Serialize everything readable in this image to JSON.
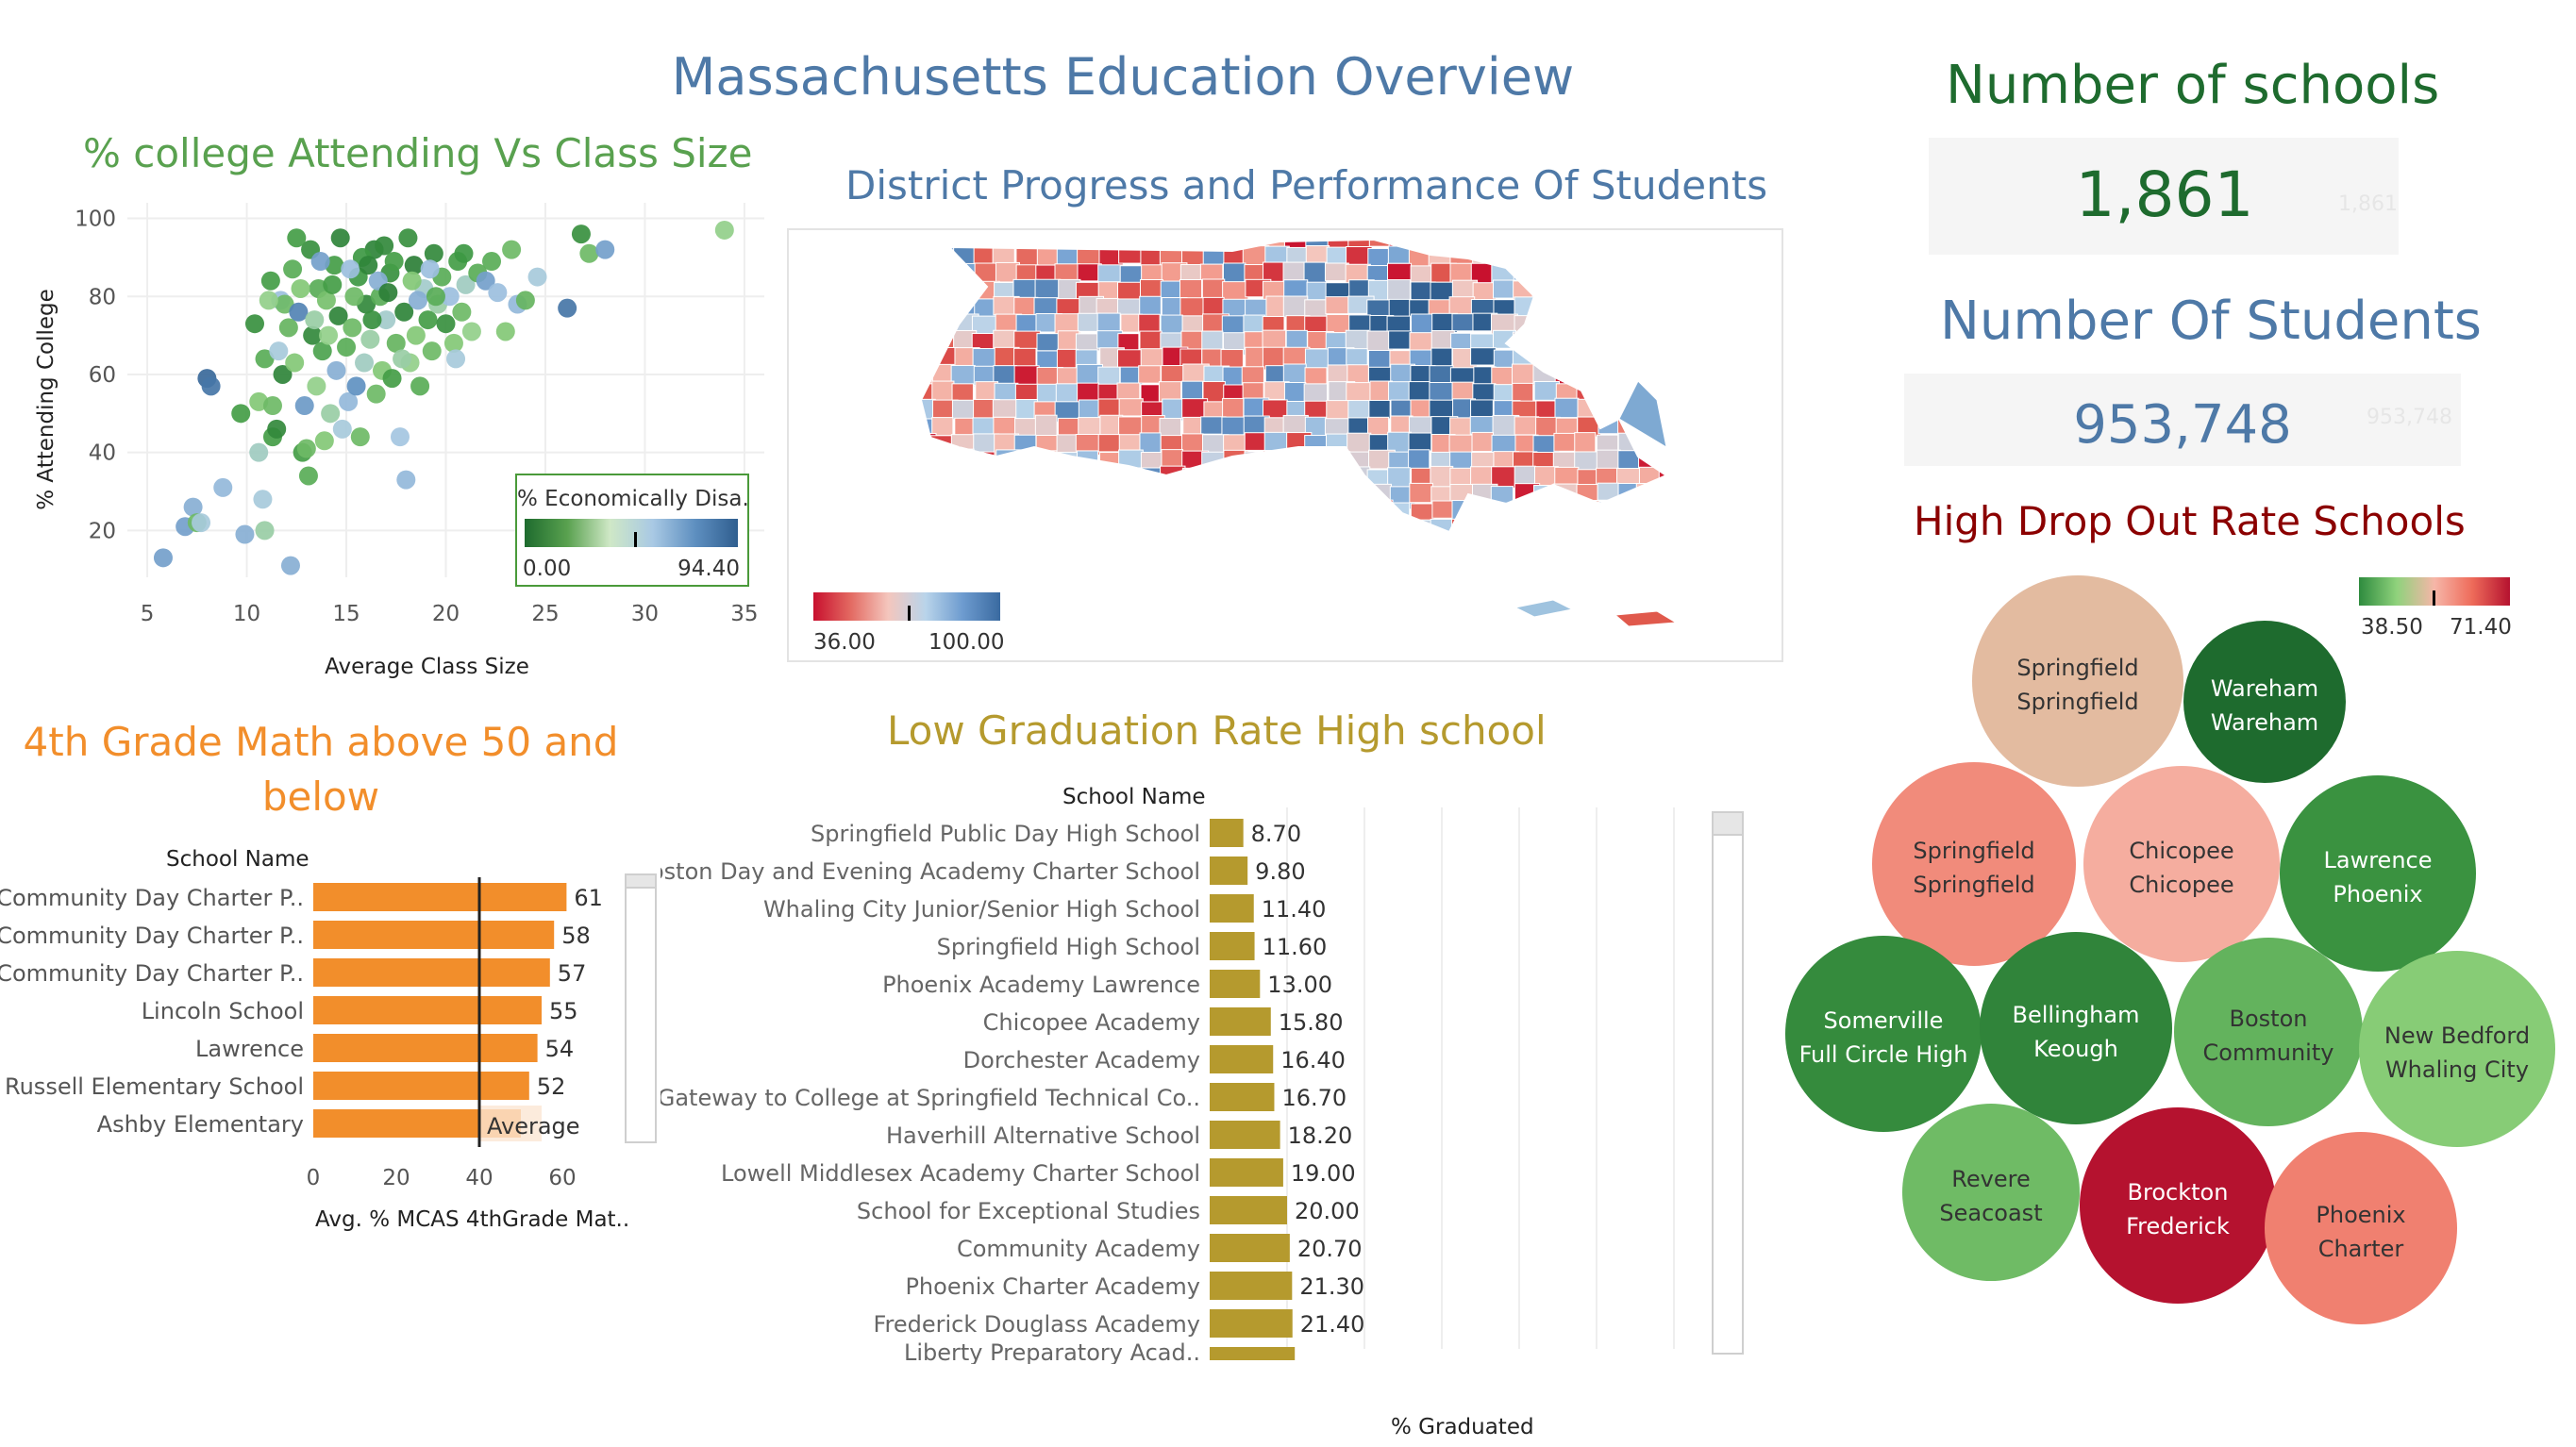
{
  "dashboard_title": "Massachusetts Education Overview",
  "kpis": {
    "schools_title": "Number of schools",
    "schools_value": "1,861",
    "schools_ghost": "1,861",
    "students_title": "Number Of Students",
    "students_value": "953,748",
    "students_ghost": "953,748"
  },
  "colors": {
    "title_blue": "#4e79a7",
    "green_title": "#59a14f",
    "orange": "#f28e2b",
    "gold": "#b59a2e",
    "dark_red": "#8b0000",
    "dark_green": "#1e6b2e"
  },
  "scatter": {
    "title": "% college Attending Vs Class Size",
    "legend_title": "% Economically Disa..",
    "legend_min": "0.00",
    "legend_max": "94.40"
  },
  "map": {
    "title": "District Progress and Performance Of Students",
    "legend_min": "36.00",
    "legend_max": "100.00"
  },
  "math": {
    "title": "4th Grade Math above 50 and below",
    "column_header": "School Name",
    "reference_label": "Average",
    "axis_label": "Avg. % MCAS 4thGrade Mat.."
  },
  "graduation": {
    "title": "Low Graduation Rate High school",
    "column_header": "School Name",
    "axis_label": "% Graduated",
    "partial_row_label": "Liberty Preparatory Acad.."
  },
  "dropout": {
    "title": "High Drop Out Rate Schools",
    "legend_min": "38.50",
    "legend_max": "71.40"
  },
  "chart_data": [
    {
      "type": "scatter",
      "title": "% college Attending Vs Class Size",
      "xlabel": "Average Class Size",
      "ylabel": "% Attending College",
      "xlim": [
        4,
        36
      ],
      "ylim": [
        8,
        104
      ],
      "xticks": [
        5,
        10,
        15,
        20,
        25,
        30,
        35
      ],
      "yticks": [
        20,
        40,
        60,
        80,
        100
      ],
      "grid": true,
      "color_field": "% Economically Disa..",
      "legend_position": "bottom-right",
      "points": [
        [
          5.8,
          13,
          70
        ],
        [
          6.9,
          21,
          70
        ],
        [
          7.3,
          26,
          65
        ],
        [
          7.5,
          22,
          30
        ],
        [
          7.7,
          22,
          55
        ],
        [
          8,
          59,
          90
        ],
        [
          8.2,
          57,
          85
        ],
        [
          8.8,
          31,
          62
        ],
        [
          9.7,
          50,
          20
        ],
        [
          9.9,
          19,
          65
        ],
        [
          10.4,
          73,
          15
        ],
        [
          10.6,
          53,
          35
        ],
        [
          10.6,
          40,
          50
        ],
        [
          10.8,
          28,
          55
        ],
        [
          10.9,
          20,
          45
        ],
        [
          10.9,
          64,
          25
        ],
        [
          11.2,
          84,
          20
        ],
        [
          11.3,
          52,
          30
        ],
        [
          11.3,
          44,
          20
        ],
        [
          11.5,
          46,
          12
        ],
        [
          11.7,
          79,
          60
        ],
        [
          11.8,
          60,
          10
        ],
        [
          11.9,
          78,
          30
        ],
        [
          12.1,
          72,
          28
        ],
        [
          12.2,
          11,
          65
        ],
        [
          12.4,
          63,
          35
        ],
        [
          12.6,
          76,
          80
        ],
        [
          12.8,
          40,
          20
        ],
        [
          12.9,
          52,
          72
        ],
        [
          13,
          41,
          30
        ],
        [
          13.1,
          34,
          25
        ],
        [
          13.3,
          70,
          12
        ],
        [
          13.5,
          57,
          40
        ],
        [
          13.6,
          82,
          25
        ],
        [
          13.8,
          66,
          22
        ],
        [
          13.9,
          43,
          35
        ],
        [
          14,
          79,
          32
        ],
        [
          14.2,
          50,
          45
        ],
        [
          14.4,
          88,
          20
        ],
        [
          14.5,
          61,
          65
        ],
        [
          14.6,
          75,
          10
        ],
        [
          14.8,
          46,
          55
        ],
        [
          15,
          67,
          25
        ],
        [
          15.1,
          53,
          62
        ],
        [
          15.3,
          72,
          30
        ],
        [
          15.5,
          57,
          75
        ],
        [
          15.6,
          85,
          18
        ],
        [
          15.7,
          44,
          30
        ],
        [
          15.9,
          63,
          50
        ],
        [
          16,
          78,
          12
        ],
        [
          16.2,
          69,
          45
        ],
        [
          16.4,
          92,
          10
        ],
        [
          16.5,
          55,
          30
        ],
        [
          16.7,
          80,
          25
        ],
        [
          16.8,
          61,
          35
        ],
        [
          17,
          74,
          52
        ],
        [
          17.2,
          86,
          15
        ],
        [
          17.3,
          59,
          20
        ],
        [
          17.5,
          68,
          28
        ],
        [
          17.7,
          44,
          58
        ],
        [
          17.9,
          76,
          10
        ],
        [
          18,
          33,
          62
        ],
        [
          18.2,
          63,
          40
        ],
        [
          18.4,
          88,
          8
        ],
        [
          18.5,
          70,
          35
        ],
        [
          18.7,
          57,
          25
        ],
        [
          18.9,
          82,
          52
        ],
        [
          19.1,
          74,
          20
        ],
        [
          19.3,
          66,
          30
        ],
        [
          19.4,
          91,
          12
        ],
        [
          19.6,
          78,
          45
        ],
        [
          19.8,
          85,
          25
        ],
        [
          20,
          73,
          15
        ],
        [
          20.2,
          80,
          60
        ],
        [
          20.4,
          68,
          35
        ],
        [
          20.6,
          89,
          20
        ],
        [
          20.8,
          76,
          30
        ],
        [
          21,
          83,
          50
        ],
        [
          21.3,
          71,
          40
        ],
        [
          21.6,
          86,
          25
        ],
        [
          22,
          84,
          70
        ],
        [
          22.3,
          89,
          25
        ],
        [
          22.6,
          81,
          60
        ],
        [
          23,
          71,
          35
        ],
        [
          23.3,
          92,
          30
        ],
        [
          23.6,
          78,
          62
        ],
        [
          24,
          79,
          28
        ],
        [
          24.6,
          85,
          55
        ],
        [
          26.1,
          77,
          85
        ],
        [
          26.8,
          96,
          15
        ],
        [
          27.2,
          91,
          30
        ],
        [
          28,
          92,
          70
        ],
        [
          34,
          97,
          40
        ],
        [
          13.2,
          92,
          15
        ],
        [
          14.7,
          95,
          10
        ],
        [
          15.8,
          90,
          18
        ],
        [
          16.9,
          93,
          12
        ],
        [
          18.1,
          95,
          15
        ],
        [
          17.4,
          89,
          20
        ],
        [
          12.5,
          95,
          20
        ],
        [
          13.7,
          89,
          70
        ],
        [
          15.2,
          87,
          60
        ],
        [
          16.6,
          84,
          65
        ],
        [
          19.2,
          87,
          60
        ],
        [
          18.6,
          79,
          65
        ],
        [
          14.1,
          70,
          40
        ],
        [
          12.3,
          87,
          25
        ],
        [
          11.6,
          66,
          55
        ],
        [
          16.3,
          74,
          15
        ],
        [
          17.8,
          64,
          45
        ],
        [
          20.5,
          64,
          55
        ],
        [
          13.4,
          74,
          45
        ],
        [
          15.4,
          80,
          30
        ],
        [
          14.3,
          83,
          20
        ],
        [
          16.1,
          88,
          10
        ],
        [
          17.1,
          81,
          8
        ],
        [
          18.3,
          84,
          35
        ],
        [
          19.5,
          80,
          25
        ],
        [
          20.9,
          91,
          18
        ],
        [
          12.7,
          82,
          35
        ],
        [
          11.1,
          79,
          40
        ]
      ]
    },
    {
      "type": "bar",
      "title": "4th Grade Math above 50 and below",
      "categories": [
        "Community Day Charter P..",
        "Community Day Charter P..",
        "Community Day Charter P..",
        "Lincoln School",
        "Lawrence",
        "Russell Elementary School",
        "Ashby Elementary"
      ],
      "values": [
        61,
        58,
        57,
        55,
        54,
        52,
        50
      ],
      "data_labels": [
        "61",
        "58",
        "57",
        "55",
        "54",
        "52",
        ""
      ],
      "xlim": [
        0,
        70
      ],
      "xticks": [
        0,
        20,
        40,
        60
      ],
      "reference_line": 40,
      "reference_label": "Average",
      "xlabel": "Avg. % MCAS 4thGrade Mat.."
    },
    {
      "type": "bar",
      "title": "Low Graduation Rate High school",
      "categories": [
        "Springfield Public Day High School",
        "Boston Day and Evening Academy Charter School",
        "Whaling City Junior/Senior High School",
        "Springfield High School",
        "Phoenix Academy Lawrence",
        "Chicopee Academy",
        "Dorchester Academy",
        "Gateway to College at Springfield Technical Co..",
        "Haverhill Alternative School",
        "Lowell Middlesex Academy Charter School",
        "School for Exceptional Studies",
        "Community Academy",
        "Phoenix Charter Academy",
        "Frederick Douglass Academy"
      ],
      "values": [
        8.7,
        9.8,
        11.4,
        11.6,
        13.0,
        15.8,
        16.4,
        16.7,
        18.2,
        19.0,
        20.0,
        20.7,
        21.3,
        21.4
      ],
      "data_labels": [
        "8.70",
        "9.80",
        "11.40",
        "11.60",
        "13.00",
        "15.80",
        "16.40",
        "16.70",
        "18.20",
        "19.00",
        "20.00",
        "20.70",
        "21.30",
        "21.40"
      ],
      "xlim": [
        0,
        130
      ],
      "xticks": [
        0,
        20,
        40,
        60,
        80,
        100,
        120
      ],
      "xlabel": "% Graduated"
    },
    {
      "type": "bubble",
      "title": "High Drop Out Rate Schools",
      "bubbles": [
        {
          "line1": "Springfield",
          "line2": "Springfield",
          "value": 57
        },
        {
          "line1": "Wareham",
          "line2": "Wareham",
          "value": 38.5
        },
        {
          "line1": "Springfield",
          "line2": "Springfield",
          "value": 62
        },
        {
          "line1": "Chicopee",
          "line2": "Chicopee",
          "value": 59
        },
        {
          "line1": "Lawrence",
          "line2": "Phoenix",
          "value": 44
        },
        {
          "line1": "Somerville",
          "line2": "Full Circle High",
          "value": 43
        },
        {
          "line1": "Bellingham",
          "line2": "Keough",
          "value": 42
        },
        {
          "line1": "Boston",
          "line2": "Community",
          "value": 48
        },
        {
          "line1": "New Bedford",
          "line2": "Whaling City",
          "value": 51
        },
        {
          "line1": "Revere",
          "line2": "Seacoast",
          "value": 49
        },
        {
          "line1": "Brockton",
          "line2": "Frederick",
          "value": 71.4
        },
        {
          "line1": "Phoenix",
          "line2": "Charter",
          "value": 63
        }
      ]
    }
  ]
}
